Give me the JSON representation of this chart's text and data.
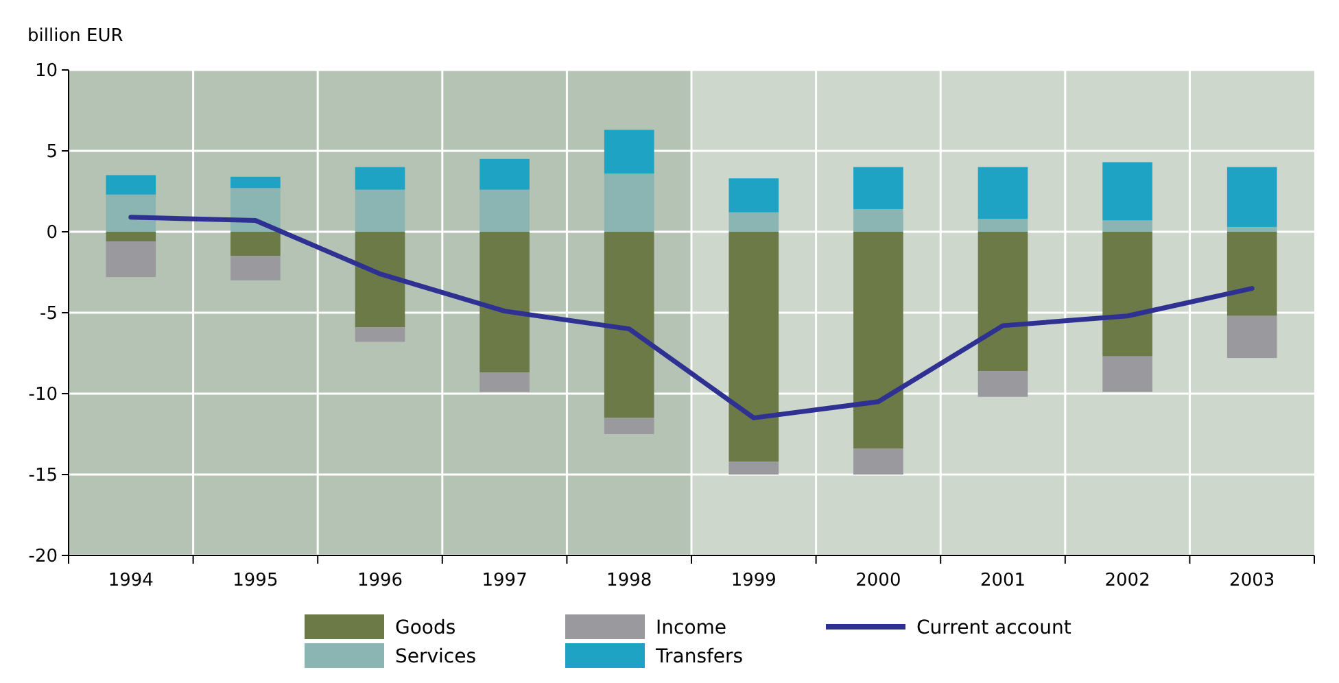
{
  "chart_data": {
    "type": "bar",
    "stacked": true,
    "ylabel": "billion EUR",
    "categories": [
      "1994",
      "1995",
      "1996",
      "1997",
      "1998",
      "1999",
      "2000",
      "2001",
      "2002",
      "2003"
    ],
    "series": [
      {
        "name": "Goods",
        "color": "#6b7a47",
        "values": [
          -0.6,
          -1.5,
          -5.9,
          -8.7,
          -11.5,
          -14.2,
          -13.4,
          -8.6,
          -7.7,
          -5.2
        ]
      },
      {
        "name": "Services",
        "color": "#8ab5b3",
        "values": [
          2.3,
          2.7,
          2.6,
          2.6,
          3.6,
          1.2,
          1.4,
          0.8,
          0.7,
          0.3
        ]
      },
      {
        "name": "Income",
        "color": "#9a9a9e",
        "values": [
          -2.2,
          -1.5,
          -0.9,
          -1.2,
          -1.0,
          -0.8,
          -1.6,
          -1.6,
          -2.2,
          -2.6
        ]
      },
      {
        "name": "Transfers",
        "color": "#1ea3c4",
        "values": [
          1.2,
          0.7,
          1.4,
          1.9,
          2.7,
          2.1,
          2.6,
          3.2,
          3.6,
          3.7
        ]
      },
      {
        "name": "Current account",
        "type": "line",
        "color": "#2e3192",
        "values": [
          0.9,
          0.7,
          -2.6,
          -4.9,
          -6.0,
          -11.5,
          -10.5,
          -5.8,
          -5.2,
          -3.5
        ]
      }
    ],
    "ylim": [
      -20,
      10
    ],
    "yticks": [
      -20,
      -15,
      -10,
      -5,
      0,
      5,
      10
    ],
    "grid": true,
    "legend": "bottom",
    "marker": "none",
    "bands": [
      {
        "axis": "x",
        "from": "1994",
        "to": "1998",
        "color": "#b4c3b3"
      },
      {
        "axis": "x",
        "from": "1999",
        "to": "2003",
        "color": "#cdd7cc"
      }
    ]
  }
}
